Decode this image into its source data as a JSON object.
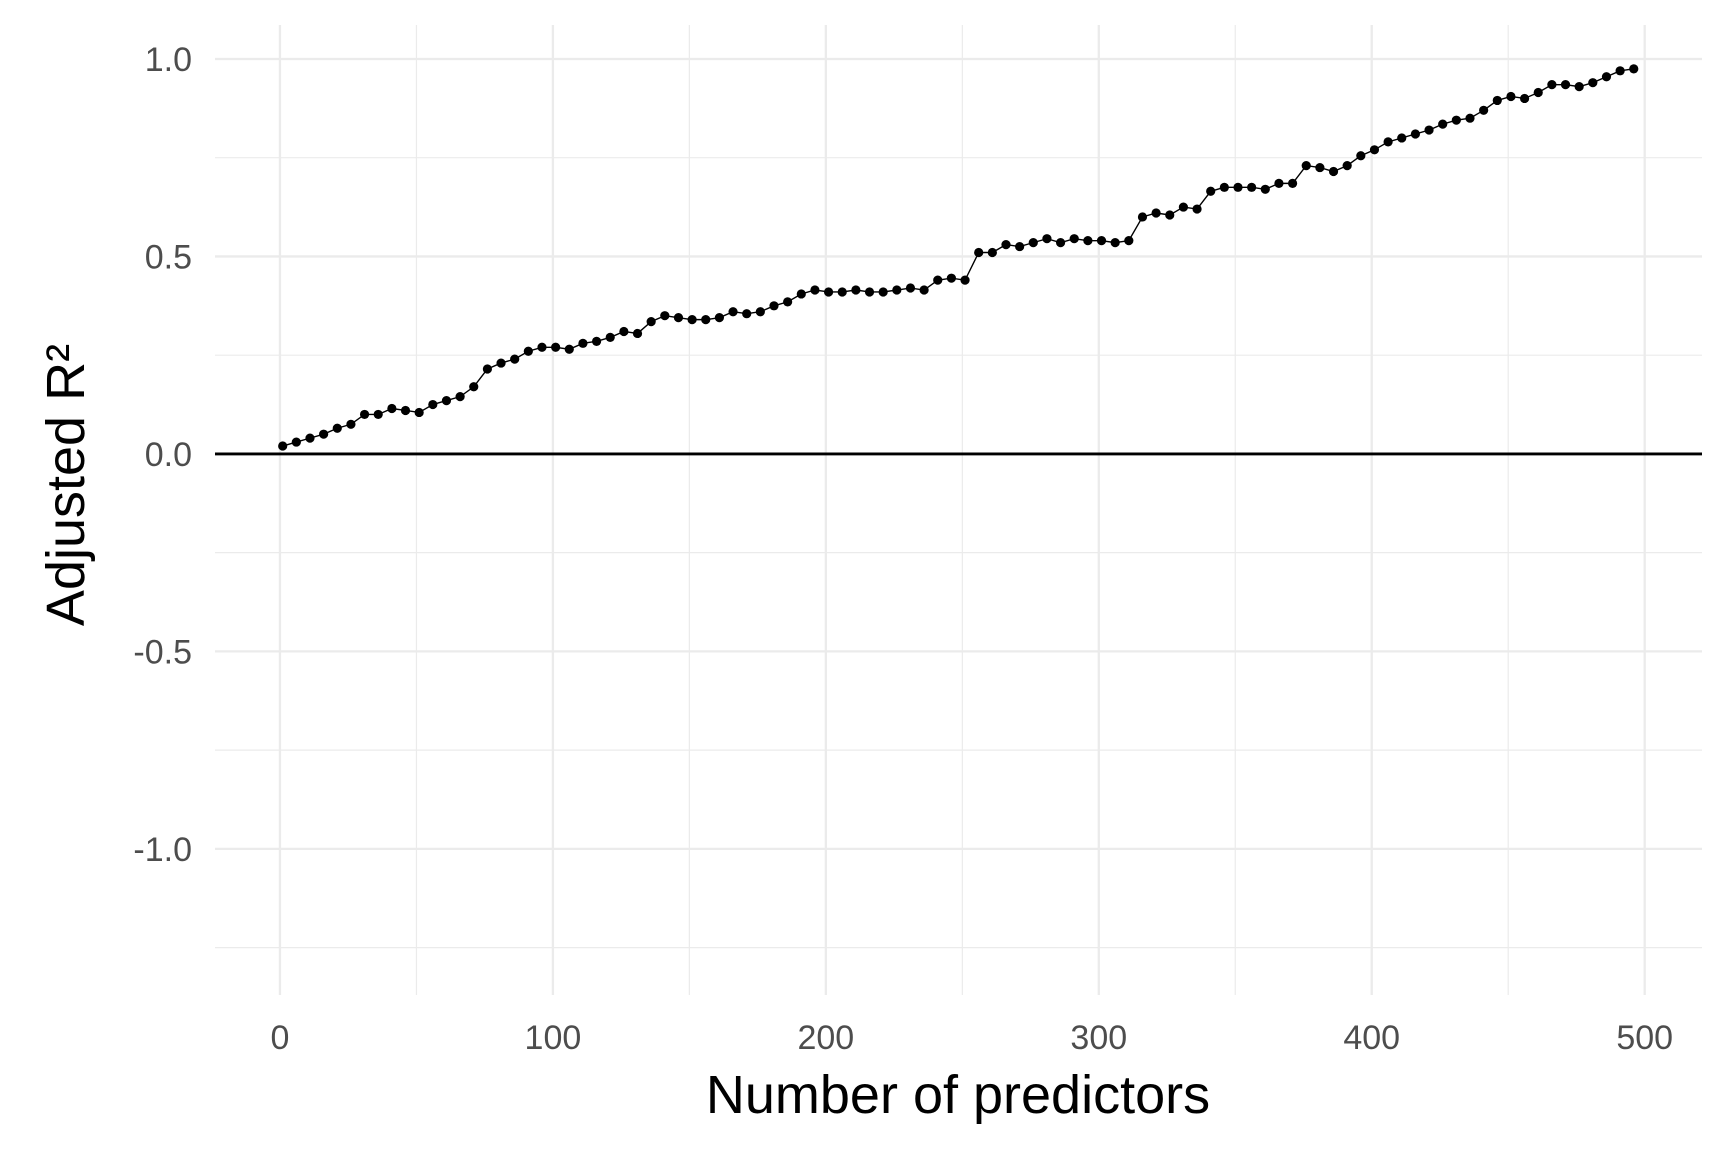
{
  "chart_data": {
    "type": "line",
    "title": "",
    "xlabel": "Number of predictors",
    "ylabel": "Adjusted R²",
    "x": [
      1,
      6,
      11,
      16,
      21,
      26,
      31,
      36,
      41,
      46,
      51,
      56,
      61,
      66,
      71,
      76,
      81,
      86,
      91,
      96,
      101,
      106,
      111,
      116,
      121,
      126,
      131,
      136,
      141,
      146,
      151,
      156,
      161,
      166,
      171,
      176,
      181,
      186,
      191,
      196,
      201,
      206,
      211,
      216,
      221,
      226,
      231,
      236,
      241,
      246,
      251,
      256,
      261,
      266,
      271,
      276,
      281,
      286,
      291,
      296,
      301,
      306,
      311,
      316,
      321,
      326,
      331,
      336,
      341,
      346,
      351,
      356,
      361,
      366,
      371,
      376,
      381,
      386,
      391,
      396,
      401,
      406,
      411,
      416,
      421,
      426,
      431,
      436,
      441,
      446,
      451,
      456,
      461,
      466,
      471,
      476,
      481,
      486,
      491,
      496
    ],
    "y": [
      0.02,
      0.03,
      0.04,
      0.05,
      0.065,
      0.075,
      0.1,
      0.1,
      0.115,
      0.11,
      0.105,
      0.125,
      0.135,
      0.145,
      0.17,
      0.215,
      0.23,
      0.24,
      0.26,
      0.27,
      0.27,
      0.265,
      0.28,
      0.285,
      0.295,
      0.31,
      0.305,
      0.335,
      0.35,
      0.345,
      0.34,
      0.34,
      0.345,
      0.36,
      0.355,
      0.36,
      0.375,
      0.385,
      0.405,
      0.415,
      0.41,
      0.41,
      0.415,
      0.41,
      0.41,
      0.415,
      0.42,
      0.415,
      0.44,
      0.445,
      0.44,
      0.51,
      0.51,
      0.53,
      0.525,
      0.535,
      0.545,
      0.535,
      0.545,
      0.54,
      0.54,
      0.535,
      0.54,
      0.6,
      0.61,
      0.605,
      0.625,
      0.62,
      0.665,
      0.675,
      0.675,
      0.675,
      0.67,
      0.685,
      0.685,
      0.73,
      0.725,
      0.715,
      0.73,
      0.755,
      0.77,
      0.79,
      0.8,
      0.81,
      0.82,
      0.835,
      0.845,
      0.85,
      0.87,
      0.895,
      0.905,
      0.9,
      0.915,
      0.935,
      0.935,
      0.93,
      0.94,
      0.955,
      0.97,
      0.975
    ],
    "xlim": [
      -23.8,
      521.0
    ],
    "ylim": [
      -1.37,
      1.086
    ],
    "x_ticks": {
      "values": [
        0,
        100,
        200,
        300,
        400,
        500
      ],
      "labels": [
        "0",
        "100",
        "200",
        "300",
        "400",
        "500"
      ]
    },
    "y_ticks": {
      "values": [
        1.0,
        0.5,
        0.0,
        -0.5,
        -1.0
      ],
      "labels": [
        "1.0",
        "0.5",
        "0.0",
        "-0.5",
        "-1.0"
      ]
    },
    "x_minor_ticks": [
      50,
      150,
      250,
      350,
      450
    ],
    "y_minor_ticks": [
      0.75,
      0.25,
      -0.25,
      -0.75,
      -1.25
    ],
    "hline_y": 0,
    "grid": "on",
    "legend": "none",
    "colors": {
      "background": "#ffffff",
      "grid_major": "#ebebeb",
      "grid_minor": "#ebebeb",
      "zero_line": "#000000",
      "series_line": "#000000",
      "point": "#000000",
      "tick_label": "#4d4d4d",
      "axis_title": "#000000"
    }
  }
}
